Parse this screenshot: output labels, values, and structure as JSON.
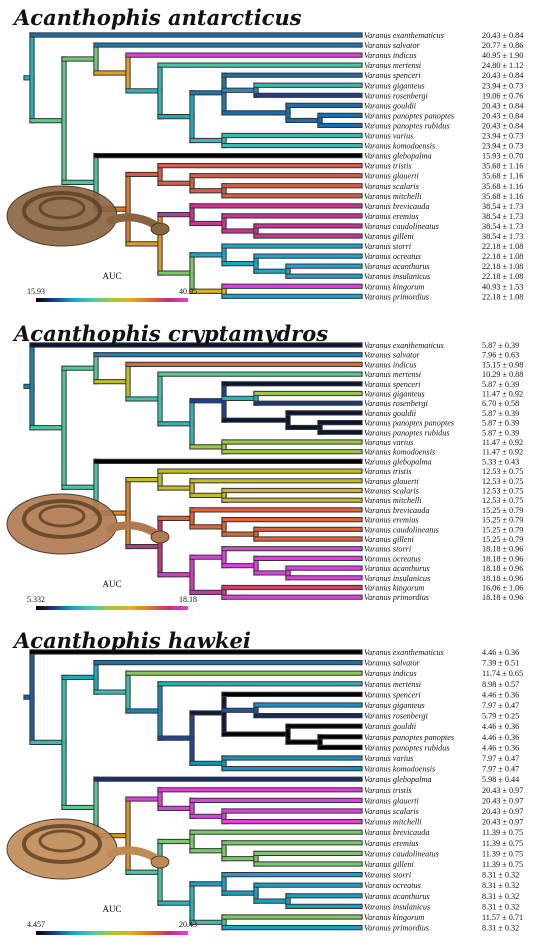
{
  "taxa": [
    "Varanus exanthematicus",
    "Varanus salvator",
    "Varanus indicus",
    "Varanus mertensi",
    "Varanus spenceri",
    "Varanus giganteus",
    "Varanus rosenbergi",
    "Varanus gouldii",
    "Varanus panoptes panoptes",
    "Varanus panoptes rubidus",
    "Varanus varius",
    "Varanus komodoensis",
    "Varanus glebopalma",
    "Varanus tristis",
    "Varanus glauerti",
    "Varanus scalaris",
    "Varanus mitchelli",
    "Varanus brevicauda",
    "Varanus eremius",
    "Varanus caudolineatus",
    "Varanus gilleni",
    "Varanus storri",
    "Varanus ocreatus",
    "Varanus acanthurus",
    "Varanus insulanicus",
    "Varanus kingorum",
    "Varanus primordius"
  ],
  "panels": [
    {
      "title": "Acanthophis antarcticus",
      "auc_label": "AUC",
      "scale_min_label": "15.93",
      "scale_max_label": "40.95",
      "scale_min": 15.93,
      "scale_max": 40.95,
      "snake_color": "#8a6440",
      "values": [
        "20.43 ± 0.84",
        "20.77 ± 0.86",
        "40.95 ± 1.90",
        "24.80 ± 1.12",
        "20.43 ± 0.84",
        "23.94 ± 0.73",
        "19.06 ± 0.76",
        "20.43 ± 0.84",
        "20.43 ± 0.84",
        "20.43 ± 0.84",
        "23.94 ± 0.73",
        "23.94 ± 0.73",
        "15.93 ± 0.70",
        "35.68 ± 1.16",
        "35.68 ± 1.16",
        "35.68 ± 1.16",
        "35.68 ± 1.16",
        "38.54 ± 1.73",
        "38.54 ± 1.73",
        "38.54 ± 1.73",
        "38.54 ± 1.73",
        "22.18 ± 1.08",
        "22.18 ± 1.08",
        "22.18 ± 1.08",
        "22.18 ± 1.08",
        "40.93 ± 1.53",
        "22.18 ± 1.08"
      ],
      "tip_values": [
        20.43,
        20.77,
        40.95,
        24.8,
        20.43,
        23.94,
        19.06,
        20.43,
        20.43,
        20.43,
        23.94,
        23.94,
        15.93,
        35.68,
        35.68,
        35.68,
        35.68,
        38.54,
        38.54,
        38.54,
        38.54,
        22.18,
        22.18,
        22.18,
        22.18,
        40.93,
        22.18
      ]
    },
    {
      "title": "Acanthophis cryptamydros",
      "auc_label": "AUC",
      "scale_min_label": "5.332",
      "scale_max_label": "18.18",
      "scale_min": 5.332,
      "scale_max": 18.18,
      "snake_color": "#b07a50",
      "values": [
        "5.87 ± 0.39",
        "7.96 ± 0.63",
        "15.15 ± 0.98",
        "10.29 ± 0.88",
        "5.87 ± 0.39",
        "11.47 ± 0.92",
        "6.70 ± 0.58",
        "5.87 ± 0.39",
        "5.87 ± 0.39",
        "5.87 ± 0.39",
        "11.47 ± 0.92",
        "11.47 ± 0.92",
        "5.33 ± 0.43",
        "12.53 ± 0.75",
        "12.53 ± 0.75",
        "12.53 ± 0.75",
        "12.53 ± 0.75",
        "15.25 ± 0.79",
        "15.25 ± 0.79",
        "15.25 ± 0.79",
        "15.25 ± 0.79",
        "18.18 ± 0.96",
        "18.18 ± 0.96",
        "18.18 ± 0.96",
        "18.18 ± 0.96",
        "16.06 ± 1.06",
        "18.18 ± 0.96"
      ],
      "tip_values": [
        5.87,
        7.96,
        15.15,
        10.29,
        5.87,
        11.47,
        6.7,
        5.87,
        5.87,
        5.87,
        11.47,
        11.47,
        5.33,
        12.53,
        12.53,
        12.53,
        12.53,
        15.25,
        15.25,
        15.25,
        15.25,
        18.18,
        18.18,
        18.18,
        18.18,
        16.06,
        18.18
      ]
    },
    {
      "title": "Acanthophis hawkei",
      "auc_label": "AUC",
      "scale_min_label": "4.457",
      "scale_max_label": "20.43",
      "scale_min": 4.457,
      "scale_max": 20.43,
      "snake_color": "#c08a55",
      "values": [
        "4.46 ± 0.36",
        "7.39 ± 0.51",
        "11.74 ± 0.65",
        "8.98 ± 0.57",
        "4.46 ± 0.36",
        "7.97 ± 0.47",
        "5.79 ± 0.25",
        "4.46 ± 0.36",
        "4.46 ± 0.36",
        "4.46 ± 0.36",
        "7.97 ± 0.47",
        "7.97 ± 0.47",
        "5.98 ± 0.44",
        "20.43 ± 0.97",
        "20.43 ± 0.97",
        "20.43 ± 0.97",
        "20.43 ± 0.97",
        "11.39 ± 0.75",
        "11.39 ± 0.75",
        "11.39 ± 0.75",
        "11.39 ± 0.75",
        "8.31 ± 0.32",
        "8.31 ± 0.32",
        "8.31 ± 0.32",
        "8.31 ± 0.32",
        "11.57 ± 0.71",
        "8.31 ± 0.32"
      ],
      "tip_values": [
        4.46,
        7.39,
        11.74,
        8.98,
        4.46,
        7.97,
        5.79,
        4.46,
        4.46,
        4.46,
        7.97,
        7.97,
        5.98,
        20.43,
        20.43,
        20.43,
        20.43,
        11.39,
        11.39,
        11.39,
        11.39,
        8.31,
        8.31,
        8.31,
        8.31,
        11.57,
        8.31
      ]
    }
  ],
  "colormap": [
    "#000000",
    "#1f3f8f",
    "#1aa7c9",
    "#4fc9a0",
    "#a9c832",
    "#e0b020",
    "#e0702a",
    "#c0307f",
    "#e040e0"
  ]
}
